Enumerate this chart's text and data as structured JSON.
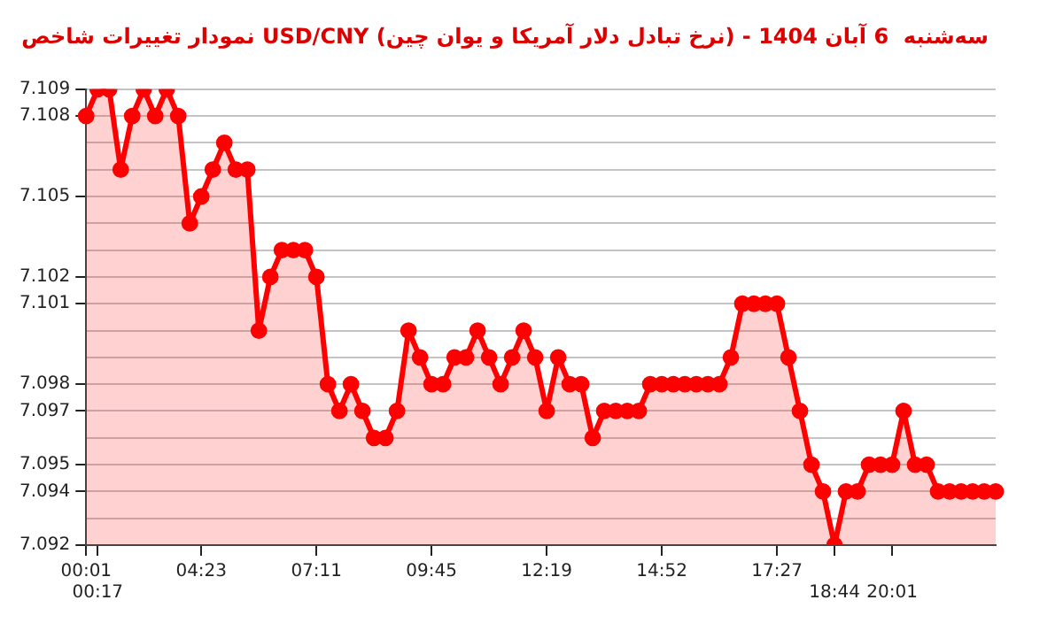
{
  "chart_data": {
    "type": "area",
    "title": "نمودار تغییرات شاخص USD/CNY (نرخ تبادل دلار آمریکا و یوان چین) - سه‌شنبه  6 آبان 1404",
    "categories": [
      "00:01",
      "00:17",
      null,
      null,
      null,
      null,
      null,
      null,
      null,
      null,
      "04:23",
      null,
      null,
      null,
      null,
      null,
      null,
      null,
      null,
      null,
      "07:11",
      null,
      null,
      null,
      null,
      null,
      null,
      null,
      null,
      null,
      "09:45",
      null,
      null,
      null,
      null,
      null,
      null,
      null,
      null,
      null,
      "12:19",
      null,
      null,
      null,
      null,
      null,
      null,
      null,
      null,
      null,
      "14:52",
      null,
      null,
      null,
      null,
      null,
      null,
      null,
      null,
      null,
      "17:27",
      null,
      null,
      null,
      null,
      "18:44",
      null,
      null,
      null,
      null,
      "20:01",
      null,
      null,
      null,
      null,
      null,
      null,
      null,
      null,
      null
    ],
    "series": [
      {
        "color": "#ff0000",
        "values": [
          7.108,
          7.109,
          7.109,
          7.106,
          7.108,
          7.109,
          7.108,
          7.109,
          7.108,
          7.104,
          7.105,
          7.106,
          7.107,
          7.106,
          7.106,
          7.1,
          7.102,
          7.103,
          7.103,
          7.103,
          7.102,
          7.098,
          7.097,
          7.098,
          7.097,
          7.096,
          7.096,
          7.097,
          7.1,
          7.099,
          7.098,
          7.098,
          7.099,
          7.099,
          7.1,
          7.099,
          7.098,
          7.099,
          7.1,
          7.099,
          7.097,
          7.099,
          7.098,
          7.098,
          7.096,
          7.097,
          7.097,
          7.097,
          7.097,
          7.098,
          7.098,
          7.098,
          7.098,
          7.098,
          7.098,
          7.098,
          7.099,
          7.101,
          7.101,
          7.101,
          7.101,
          7.099,
          7.097,
          7.095,
          7.094,
          7.092,
          7.094,
          7.094,
          7.095,
          7.095,
          7.095,
          7.097,
          7.095,
          7.095,
          7.094,
          7.094,
          7.094,
          7.094,
          7.094,
          7.094
        ]
      }
    ],
    "ylim": [
      7.092,
      7.109
    ],
    "yticks": [
      7.092,
      {
        "value": 7.093,
        "label": null
      },
      7.094,
      7.095,
      {
        "value": 7.096,
        "label": null
      },
      7.097,
      7.098,
      {
        "value": 7.099,
        "label": null
      },
      {
        "value": 7.1,
        "label": null
      },
      7.101,
      7.102,
      {
        "value": 7.103,
        "label": null
      },
      {
        "value": 7.104,
        "label": null
      },
      7.105,
      {
        "value": 7.106,
        "label": null
      },
      {
        "value": 7.107,
        "label": null
      },
      7.108,
      7.109
    ],
    "grid": "y",
    "legend": false,
    "marker": "circle",
    "line_style": "solid"
  }
}
